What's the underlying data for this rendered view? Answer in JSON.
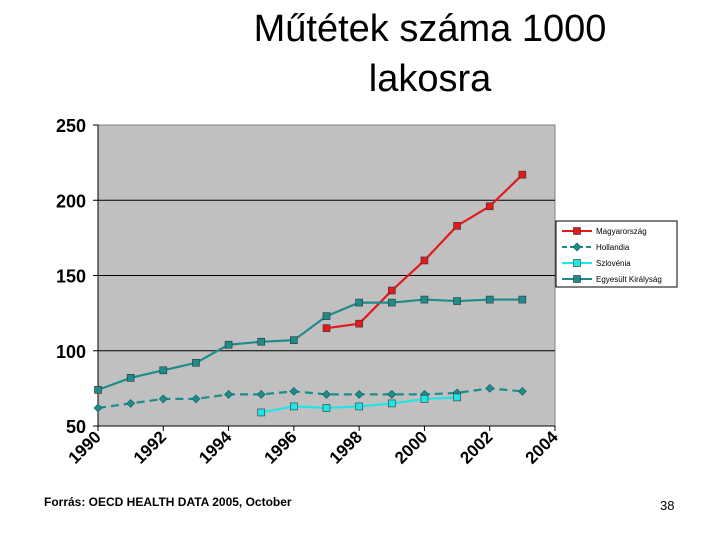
{
  "slide": {
    "title": "Műtétek száma 1000\nlakosra",
    "source": "Forrás: OECD HEALTH DATA 2005, October",
    "page_number": "38"
  },
  "chart_data": {
    "type": "line",
    "title": "Műtétek száma 1000 lakosra",
    "xlabel": "",
    "ylabel": "",
    "x_ticks": [
      "1990",
      "1992",
      "1994",
      "1996",
      "1998",
      "2000",
      "2002",
      "2004"
    ],
    "y_ticks": [
      "50",
      "100",
      "150",
      "200",
      "250"
    ],
    "xlim": [
      1990,
      2004
    ],
    "ylim": [
      50,
      250
    ],
    "grid": "horizontal",
    "legend_position": "right",
    "series": [
      {
        "name": "Magyarország",
        "color": "#e31a1c",
        "marker": "square",
        "dash": false,
        "points": [
          [
            1997,
            115
          ],
          [
            1998,
            118
          ],
          [
            1999,
            140
          ],
          [
            2000,
            160
          ],
          [
            2001,
            183
          ],
          [
            2002,
            196
          ],
          [
            2003,
            217
          ]
        ]
      },
      {
        "name": "Hollandia",
        "color": "#1f8c8c",
        "marker": "diamond",
        "dash": true,
        "points": [
          [
            1990,
            62
          ],
          [
            1991,
            65
          ],
          [
            1992,
            68
          ],
          [
            1993,
            68
          ],
          [
            1994,
            71
          ],
          [
            1995,
            71
          ],
          [
            1996,
            73
          ],
          [
            1997,
            71
          ],
          [
            1998,
            71
          ],
          [
            1999,
            71
          ],
          [
            2000,
            71
          ],
          [
            2001,
            72
          ],
          [
            2002,
            75
          ],
          [
            2003,
            73
          ]
        ]
      },
      {
        "name": "Szlovénia",
        "color": "#1ee6e6",
        "marker": "square",
        "dash": false,
        "points": [
          [
            1995,
            59
          ],
          [
            1996,
            63
          ],
          [
            1997,
            62
          ],
          [
            1998,
            63
          ],
          [
            1999,
            65
          ],
          [
            2000,
            68
          ],
          [
            2001,
            69
          ]
        ]
      },
      {
        "name": "Egyesült Királyság",
        "color": "#1f8c8c",
        "marker": "square",
        "dash": false,
        "points": [
          [
            1990,
            74
          ],
          [
            1991,
            82
          ],
          [
            1992,
            87
          ],
          [
            1993,
            92
          ],
          [
            1994,
            104
          ],
          [
            1995,
            106
          ],
          [
            1996,
            107
          ],
          [
            1997,
            123
          ],
          [
            1998,
            132
          ],
          [
            1999,
            132
          ],
          [
            2000,
            134
          ],
          [
            2001,
            133
          ],
          [
            2002,
            134
          ],
          [
            2003,
            134
          ]
        ]
      }
    ]
  }
}
